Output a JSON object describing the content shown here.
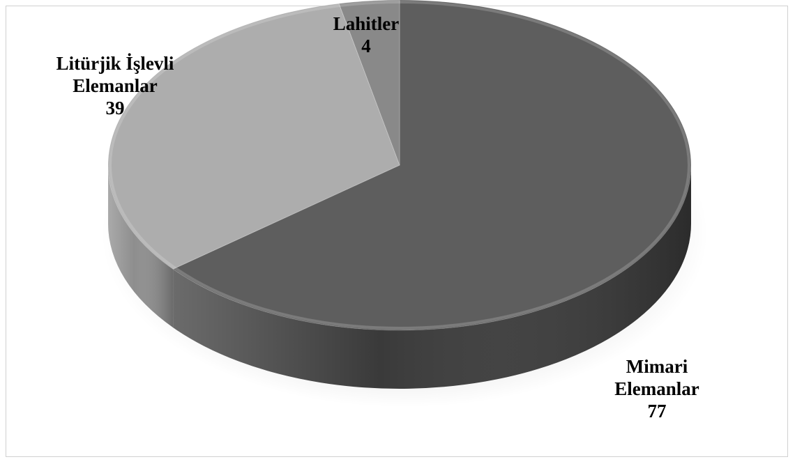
{
  "chart_data": {
    "type": "pie",
    "style": "3d",
    "title": "",
    "slices": [
      {
        "label_lines": [
          "Mimari",
          "Elemanlar"
        ],
        "value": 77,
        "value_text": "77",
        "color": "#5e5e5e",
        "side_color": "#3a3a3a"
      },
      {
        "label_lines": [
          "Litürjik İşlevli",
          "Elemanlar"
        ],
        "value": 39,
        "value_text": "39",
        "color": "#adadad",
        "side_color": "#8e8e8e"
      },
      {
        "label_lines": [
          "Lahitler"
        ],
        "value": 4,
        "value_text": "4",
        "color": "#898989",
        "side_color": "#6a6a6a"
      }
    ],
    "legend": "none",
    "grid": false
  }
}
